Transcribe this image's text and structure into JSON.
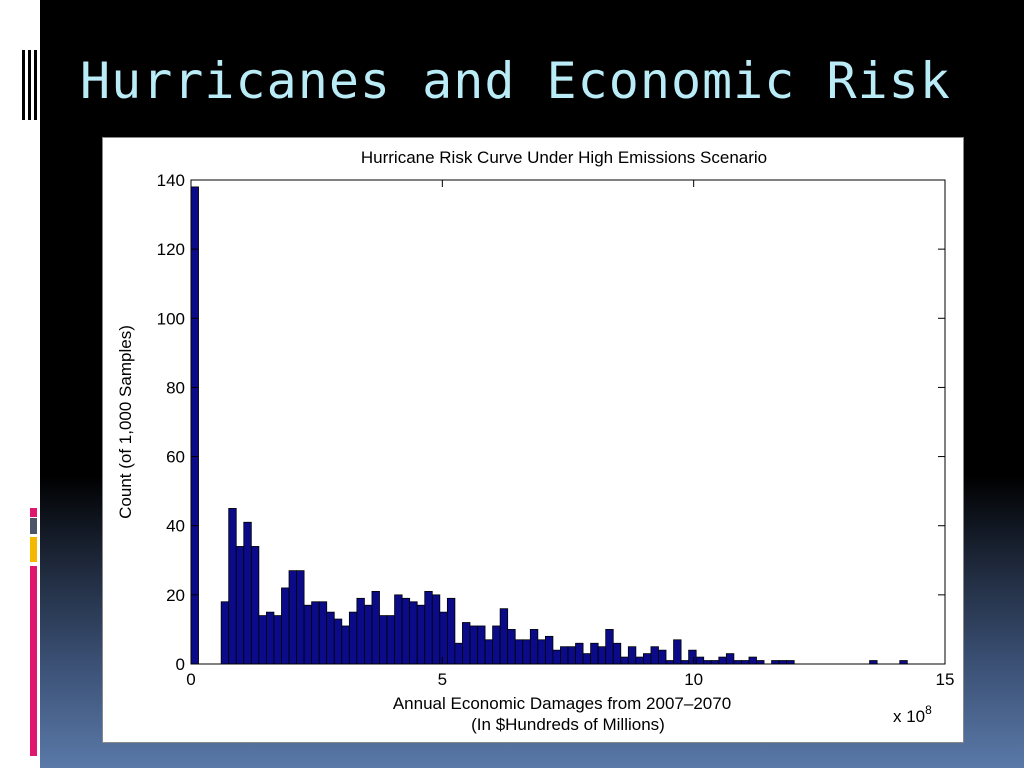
{
  "slide": {
    "title": "Hurricanes and Economic Risk"
  },
  "chart_data": {
    "type": "bar",
    "title": "Hurricane Risk Curve Under High Emissions Scenario",
    "xlabel_line1": "Annual Economic Damages from 2007–2070",
    "xlabel_line2": "(In $Hundreds of Millions)",
    "ylabel": "Count (of 1,000 Samples)",
    "x_multiplier_base": "x 10",
    "x_multiplier_exp": "8",
    "xlim": [
      0,
      15
    ],
    "ylim": [
      0,
      140
    ],
    "xticks": [
      0,
      5,
      10,
      15
    ],
    "yticks": [
      0,
      20,
      40,
      60,
      80,
      100,
      120,
      140
    ],
    "bin_width": 0.15,
    "bar_color": "#0b0b8a",
    "grid": false,
    "values": [
      138,
      0,
      0,
      0,
      18,
      45,
      34,
      41,
      34,
      14,
      15,
      14,
      22,
      27,
      27,
      17,
      18,
      18,
      15,
      13,
      11,
      15,
      19,
      17,
      21,
      14,
      14,
      20,
      19,
      18,
      17,
      21,
      20,
      15,
      19,
      6,
      12,
      11,
      11,
      7,
      11,
      16,
      10,
      7,
      7,
      10,
      7,
      8,
      4,
      5,
      5,
      6,
      3,
      6,
      5,
      10,
      6,
      2,
      5,
      2,
      3,
      5,
      4,
      1,
      7,
      1,
      4,
      2,
      1,
      1,
      2,
      3,
      1,
      1,
      2,
      1,
      0,
      1,
      1,
      1,
      0,
      0,
      0,
      0,
      0,
      0,
      0,
      0,
      0,
      0,
      1,
      0,
      0,
      0,
      1,
      0,
      0,
      0,
      0,
      0
    ]
  }
}
